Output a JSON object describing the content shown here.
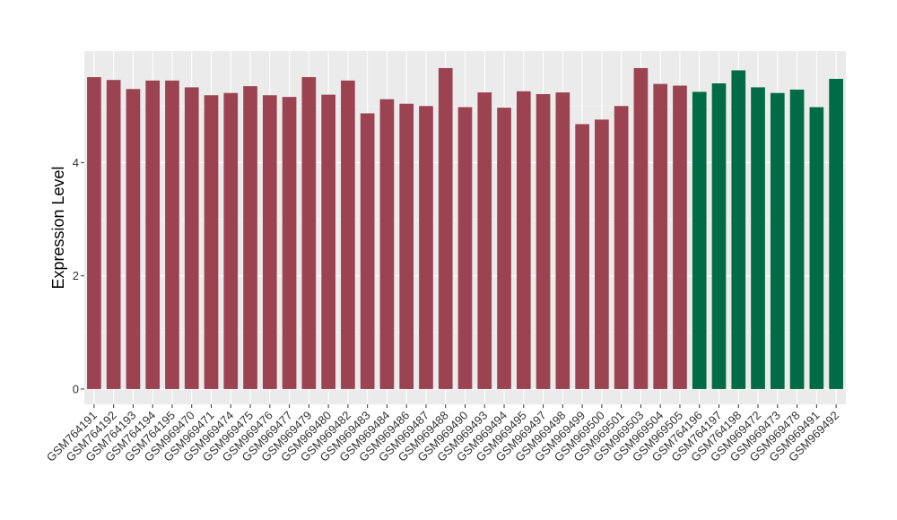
{
  "chart_data": {
    "type": "bar",
    "ylabel": "Expression Level",
    "xlabel": "",
    "ylim": [
      -0.27,
      5.97
    ],
    "yticks": [
      0,
      2,
      4
    ],
    "grid": true,
    "background": "#EBEBEB",
    "colors": {
      "group1": "#9B4350",
      "group2": "#006B45"
    },
    "categories": [
      "GSM764191",
      "GSM764192",
      "GSM764193",
      "GSM764194",
      "GSM764195",
      "GSM969470",
      "GSM969471",
      "GSM969474",
      "GSM969475",
      "GSM969476",
      "GSM969477",
      "GSM969479",
      "GSM969480",
      "GSM969482",
      "GSM969483",
      "GSM969484",
      "GSM969486",
      "GSM969487",
      "GSM969488",
      "GSM969490",
      "GSM969493",
      "GSM969494",
      "GSM969495",
      "GSM969497",
      "GSM969498",
      "GSM969499",
      "GSM969500",
      "GSM969501",
      "GSM969503",
      "GSM969504",
      "GSM969505",
      "GSM764196",
      "GSM764197",
      "GSM764198",
      "GSM969472",
      "GSM969473",
      "GSM969478",
      "GSM969491",
      "GSM969492"
    ],
    "values": [
      5.51,
      5.46,
      5.3,
      5.45,
      5.45,
      5.33,
      5.19,
      5.23,
      5.35,
      5.19,
      5.16,
      5.51,
      5.2,
      5.45,
      4.87,
      5.12,
      5.04,
      5.0,
      5.67,
      4.98,
      5.24,
      4.97,
      5.26,
      5.21,
      5.24,
      4.68,
      4.76,
      5.0,
      5.67,
      5.39,
      5.36,
      5.25,
      5.4,
      5.63,
      5.33,
      5.23,
      5.29,
      4.98,
      5.48
    ],
    "groups": [
      "group1",
      "group1",
      "group1",
      "group1",
      "group1",
      "group1",
      "group1",
      "group1",
      "group1",
      "group1",
      "group1",
      "group1",
      "group1",
      "group1",
      "group1",
      "group1",
      "group1",
      "group1",
      "group1",
      "group1",
      "group1",
      "group1",
      "group1",
      "group1",
      "group1",
      "group1",
      "group1",
      "group1",
      "group1",
      "group1",
      "group1",
      "group2",
      "group2",
      "group2",
      "group2",
      "group2",
      "group2",
      "group2",
      "group2"
    ]
  }
}
